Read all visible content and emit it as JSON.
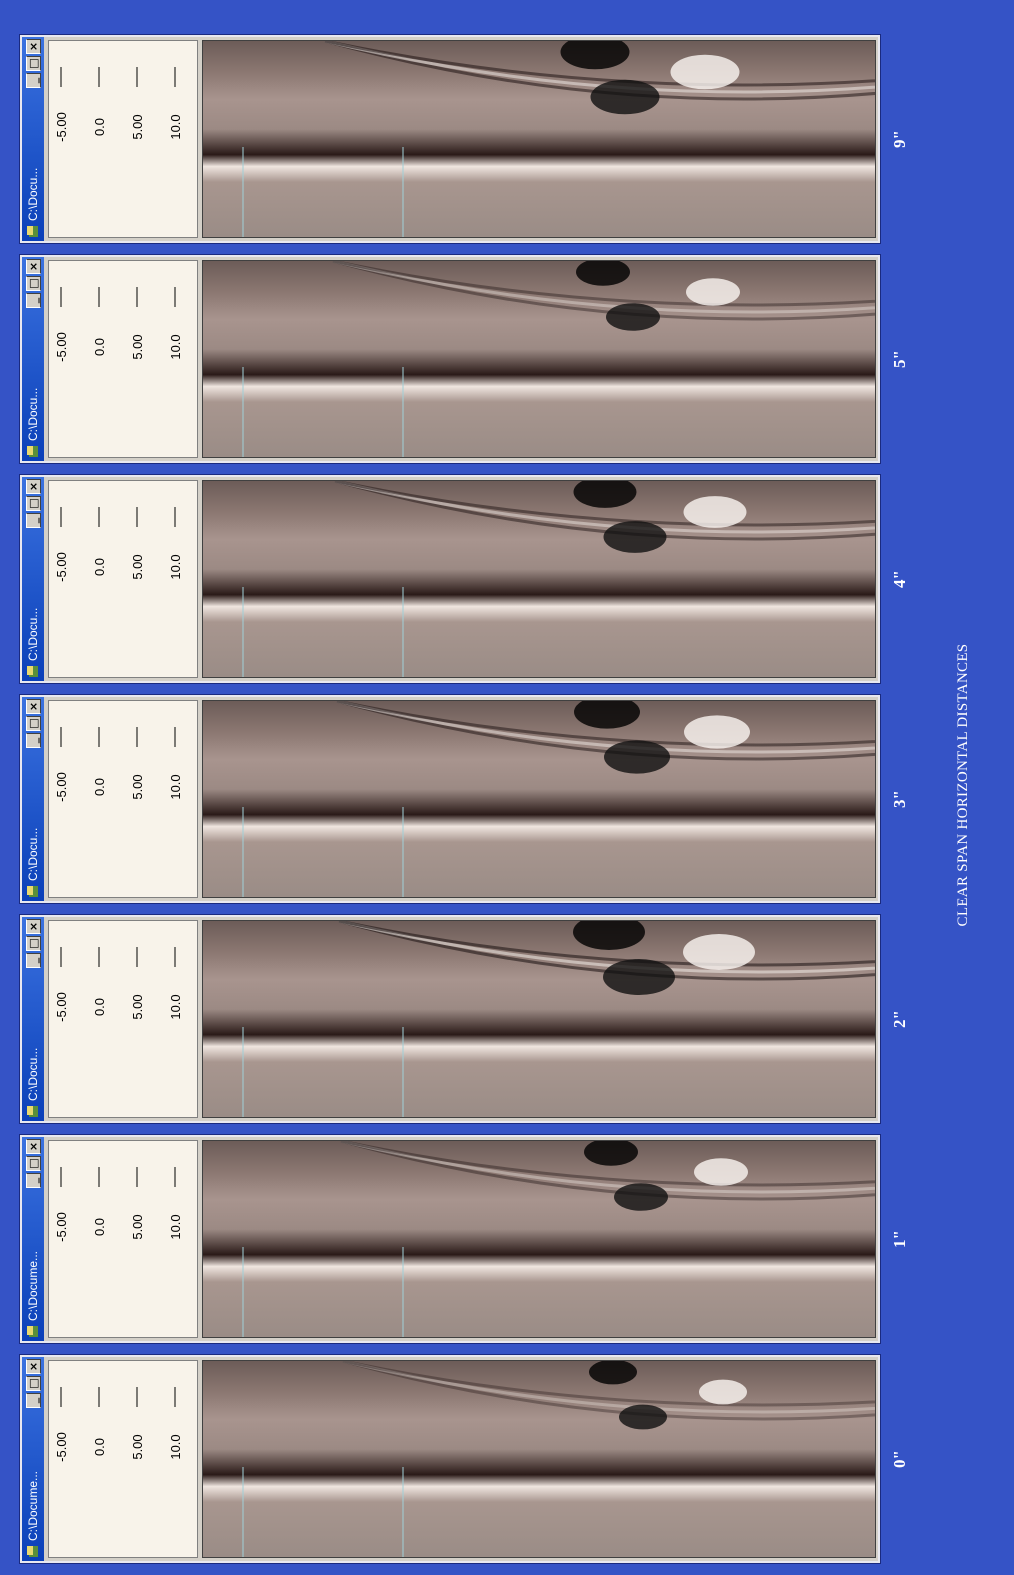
{
  "caption": "CLEAR SPAN HORIZONTAL DISTANCES",
  "colors": {
    "background": "#3553c6",
    "titlebar": "#1a4fd0"
  },
  "windows": [
    {
      "title": "C:\\Docume...",
      "label": "0\"",
      "ticks": [
        "-5.00",
        "0.0",
        "5.00",
        "10.0"
      ],
      "offset": 0.0,
      "intensity": 0.6
    },
    {
      "title": "C:\\Docume...",
      "label": "1\"",
      "ticks": [
        "-5.00",
        "0.0",
        "5.00",
        "10.0"
      ],
      "offset": 0.1,
      "intensity": 0.7
    },
    {
      "title": "C:\\Docu...",
      "label": "2\"",
      "ticks": [
        "-5.00",
        "0.0",
        "5.00",
        "10.0"
      ],
      "offset": 0.2,
      "intensity": 1.0
    },
    {
      "title": "C:\\Docu...",
      "label": "3\"",
      "ticks": [
        "-5.00",
        "0.0",
        "5.00",
        "10.0"
      ],
      "offset": 0.3,
      "intensity": 0.9
    },
    {
      "title": "C:\\Docu...",
      "label": "4\"",
      "ticks": [
        "-5.00",
        "0.0",
        "5.00",
        "10.0"
      ],
      "offset": 0.4,
      "intensity": 0.85
    },
    {
      "title": "C:\\Docu...",
      "label": "5\"",
      "ticks": [
        "-5.00",
        "0.0",
        "5.00",
        "10.0"
      ],
      "offset": 0.5,
      "intensity": 0.7
    },
    {
      "title": "C:\\Docu...",
      "label": "9\"",
      "ticks": [
        "-5.00",
        "0.0",
        "5.00",
        "10.0"
      ],
      "offset": 0.9,
      "intensity": 0.95
    }
  ]
}
